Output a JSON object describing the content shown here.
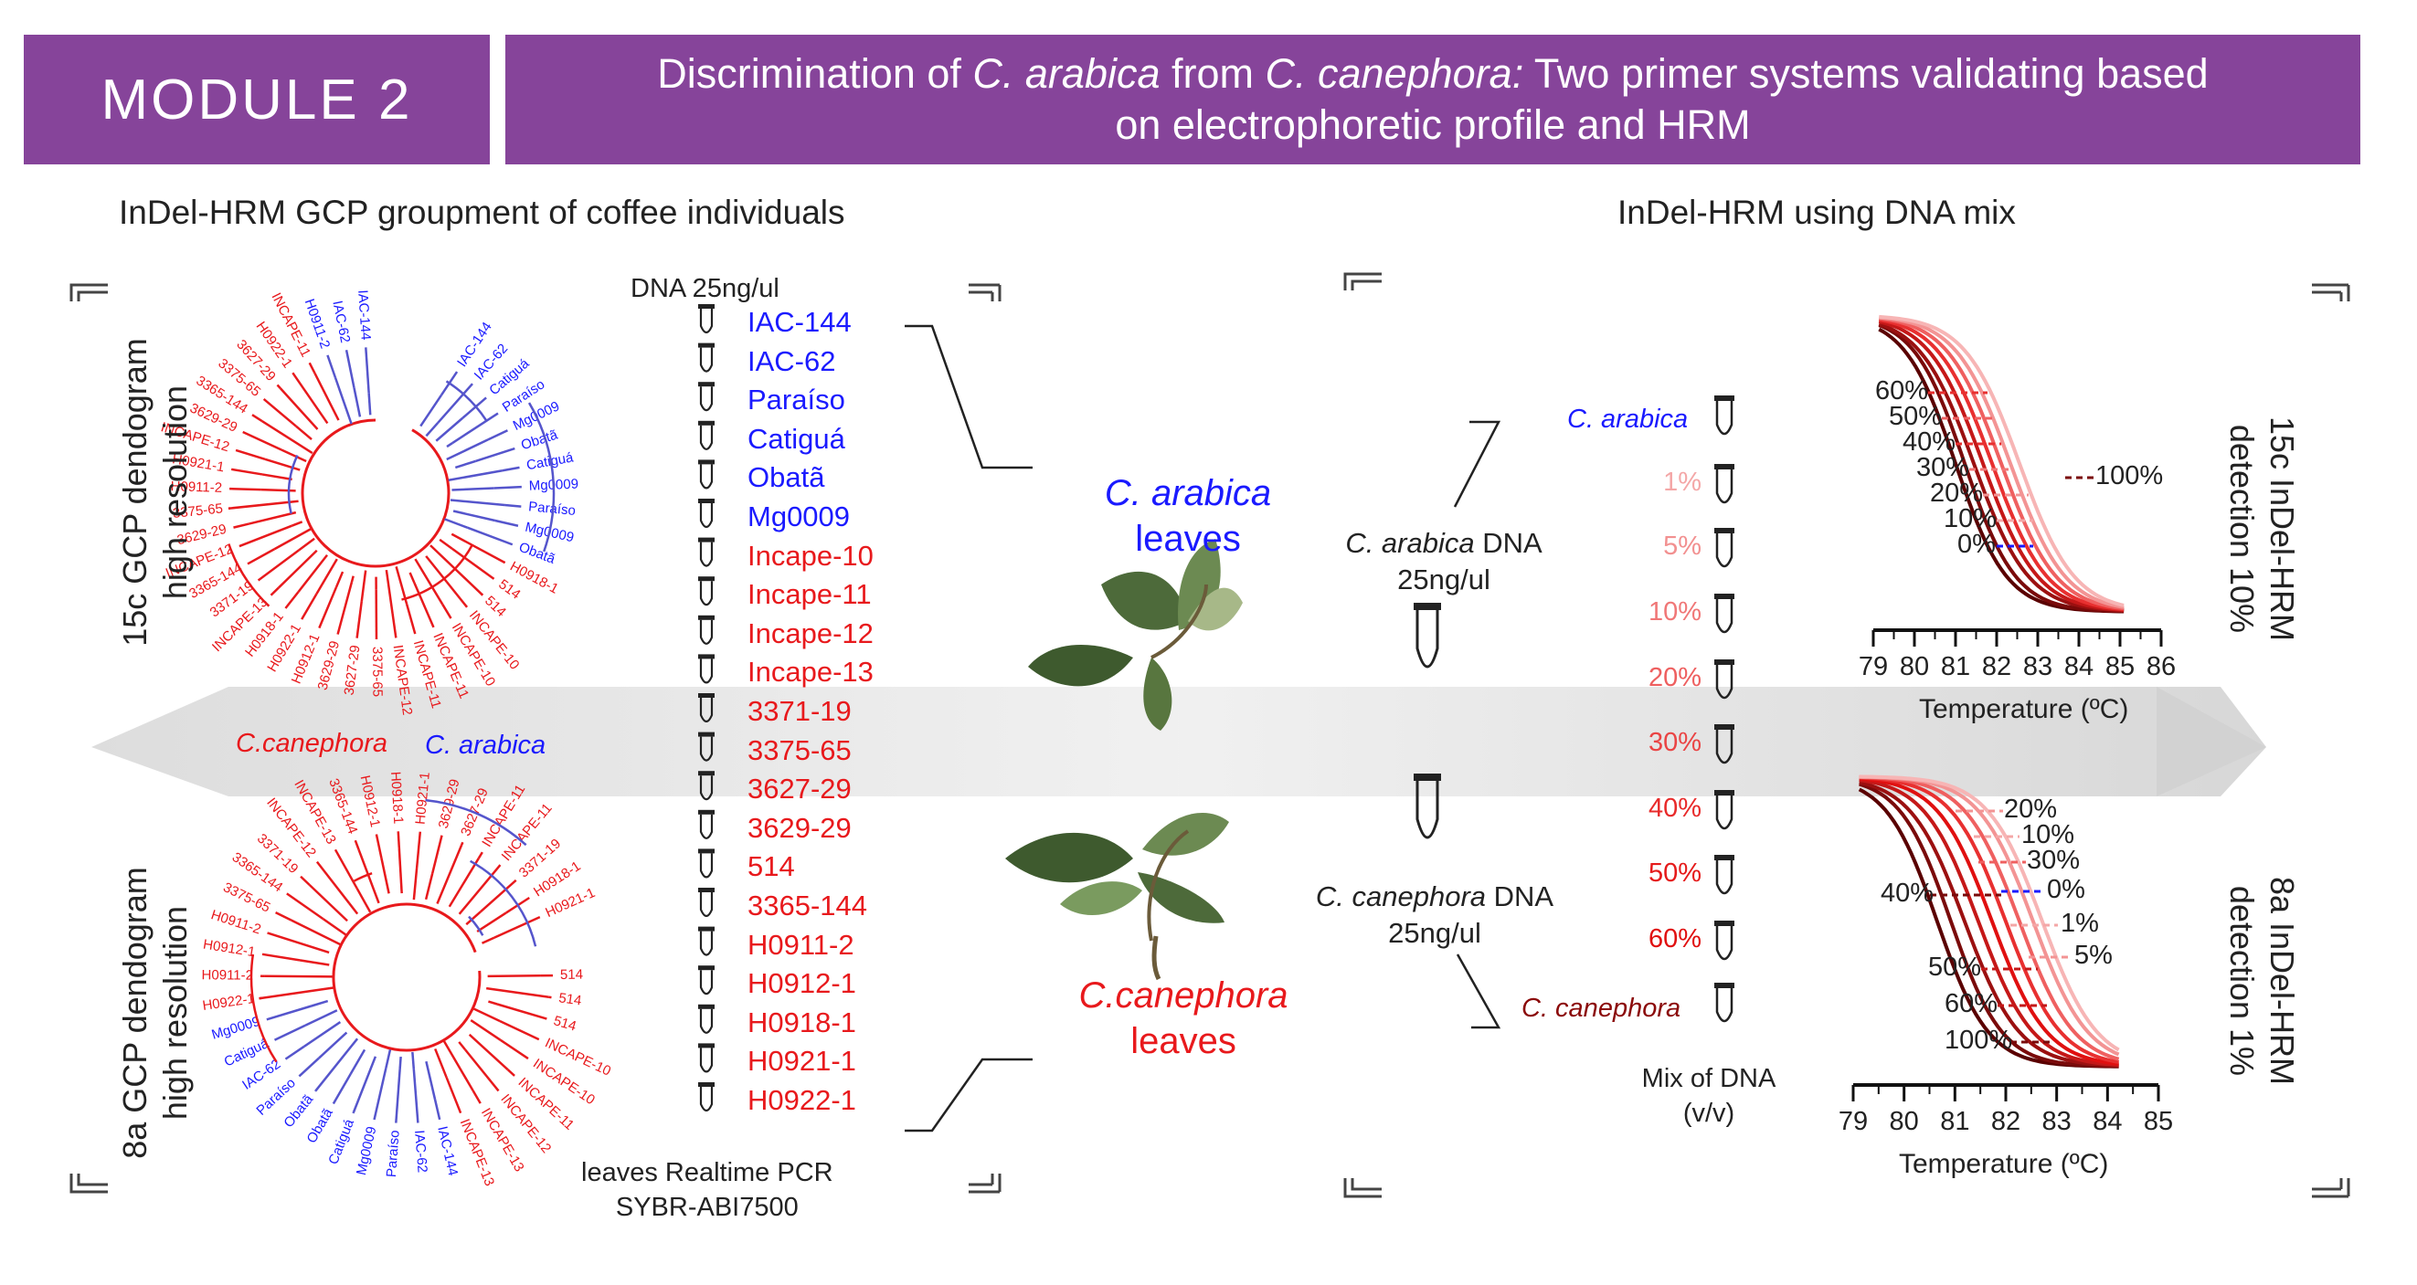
{
  "header": {
    "module_label": "MODULE 2",
    "title_line1_a": "Discrimination of ",
    "title_line1_b": "C. arabica",
    "title_line1_c": " from ",
    "title_line1_d": "C. canephora:",
    "title_line1_e": " Two primer systems validating based",
    "title_line2": "on electrophoretic profile and HRM"
  },
  "left_section": {
    "title": "InDel-HRM GCP groupment of coffee individuals",
    "top_dendro_label_1": "15c GCP dendogram",
    "top_dendro_label_2": "high resolution",
    "bottom_dendro_label_1": "8a GCP dendogram",
    "bottom_dendro_label_2": "high resolution",
    "group_canephora": "C.canephora",
    "group_arabica": "C. arabica",
    "dna_label": "DNA 25ng/ul",
    "footer_1": "leaves Realtime PCR",
    "footer_2": "SYBR-ABI7500",
    "samples_arabica": [
      "IAC-144",
      "IAC-62",
      "Paraíso",
      "Catiguá",
      "Obatã",
      "Mg0009"
    ],
    "samples_canephora": [
      "Incape-10",
      "Incape-11",
      "Incape-12",
      "Incape-13",
      "3371-19",
      "3375-65",
      "3627-29",
      "3629-29",
      "514",
      "3365-144",
      "H0911-2",
      "H0912-1",
      "H0918-1",
      "H0921-1",
      "H0922-1"
    ],
    "arabica_leaves_1": "C. arabica",
    "arabica_leaves_2": "leaves",
    "canephora_leaves_1": "C.canephora",
    "canephora_leaves_2": "leaves"
  },
  "right_section": {
    "title": "InDel-HRM using DNA mix",
    "arabica_dna_a": "C. arabica",
    "arabica_dna_b": " DNA",
    "arabica_dna_c": "25ng/ul",
    "canephora_dna_a": "C. canephora",
    "canephora_dna_b": " DNA",
    "canephora_dna_c": "25ng/ul",
    "mix_top": "C. arabica",
    "mix_bottom": "C. canephora",
    "mix_percents": [
      "1%",
      "5%",
      "10%",
      "20%",
      "30%",
      "40%",
      "50%",
      "60%"
    ],
    "mix_footer_1": "Mix of DNA",
    "mix_footer_2": "(v/v)",
    "top_chart_side_1": "15c InDel-HRM",
    "top_chart_side_2": "detection 10%",
    "bottom_chart_side_1": "8a InDel-HRM",
    "bottom_chart_side_2": "detection 1%"
  },
  "colors": {
    "purple": "#86449a",
    "arabica_blue": "#1a1aff",
    "canephora_red": "#e8191c",
    "dark_red": "#7a0a0a"
  },
  "chart_data": [
    {
      "type": "line",
      "xlabel": "Temperature (ºC)",
      "ylabel": "",
      "x_ticks": [
        "79",
        "80",
        "81",
        "82",
        "83",
        "84",
        "85",
        "86"
      ],
      "xlim": [
        79,
        86
      ],
      "series_labels": [
        "60%",
        "50%",
        "40%",
        "30%",
        "20%",
        "10%",
        "0%",
        "100%"
      ]
    },
    {
      "type": "line",
      "xlabel": "Temperature (ºC)",
      "ylabel": "",
      "x_ticks": [
        "79",
        "80",
        "81",
        "82",
        "83",
        "84",
        "85"
      ],
      "xlim": [
        79,
        85
      ],
      "series_labels": [
        "20%",
        "10%",
        "30%",
        "40%",
        "0%",
        "1%",
        "5%",
        "50%",
        "60%",
        "100%"
      ]
    }
  ]
}
